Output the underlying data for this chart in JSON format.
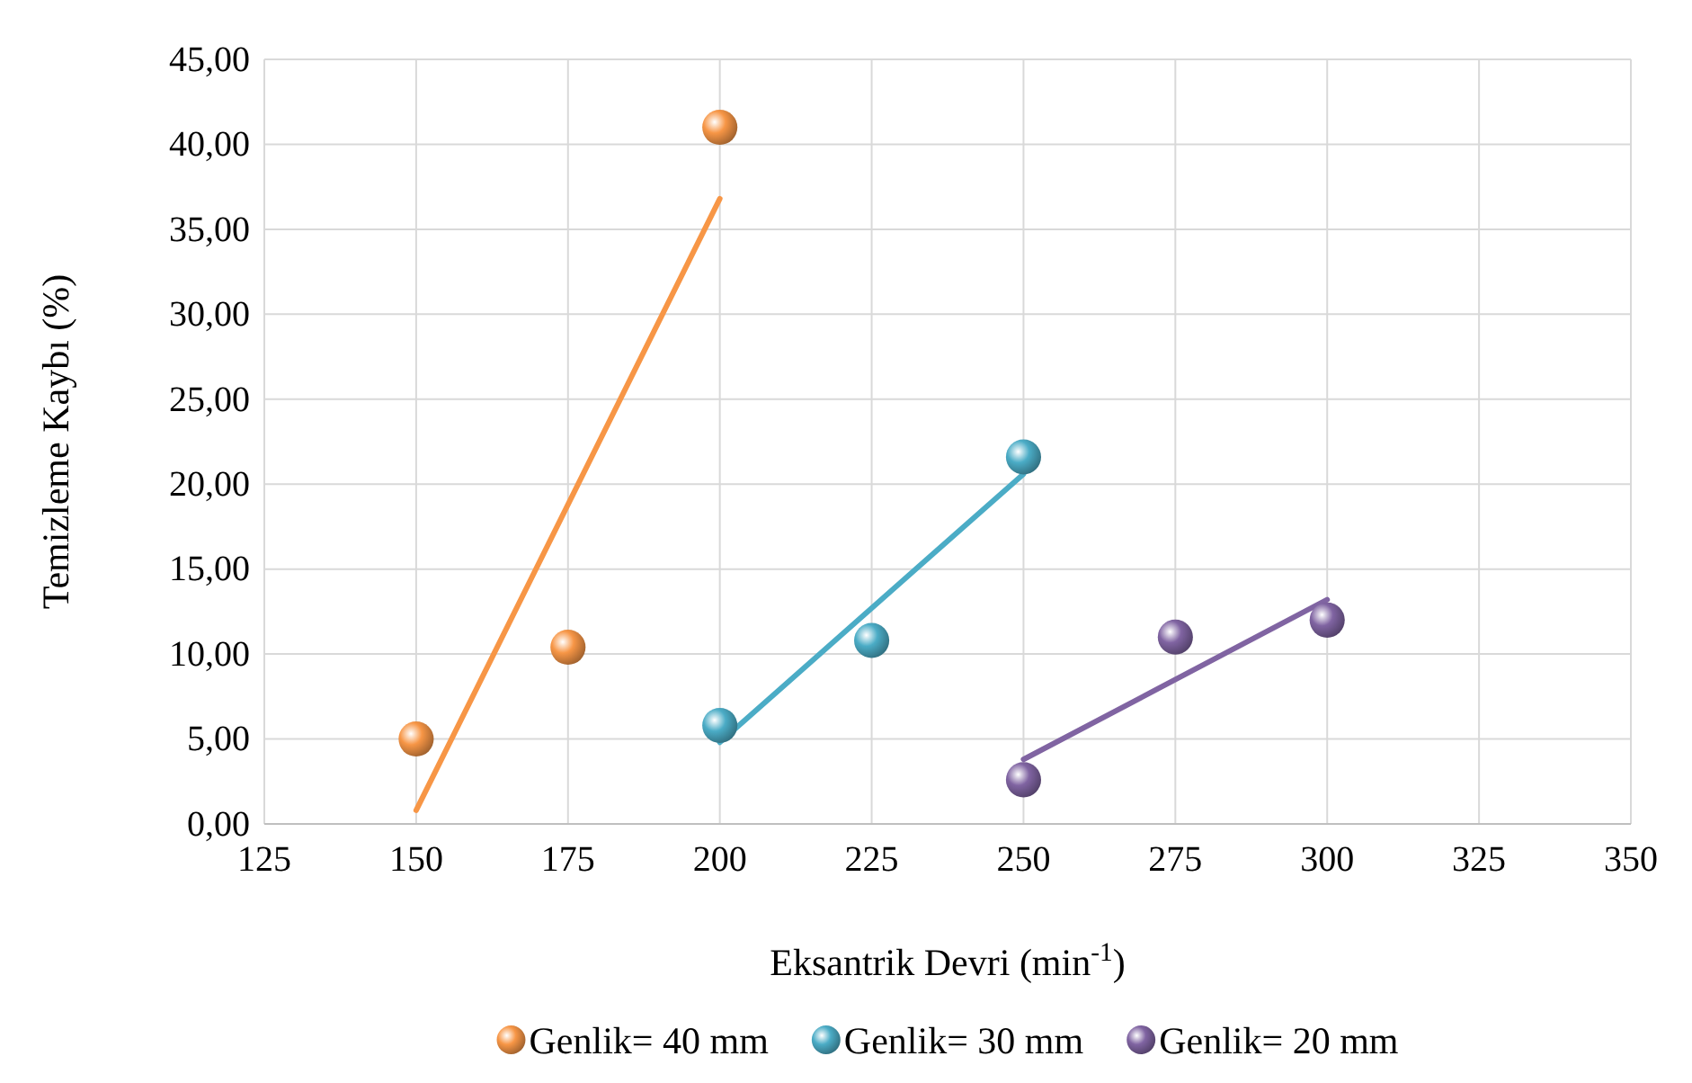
{
  "chart_data": {
    "type": "scatter",
    "xlabel": "Eksantrik Devri (min$^{-1}$)",
    "ylabel": "Temizleme Kaybı (%)",
    "xlim": [
      125,
      350
    ],
    "xticks": [
      125,
      150,
      175,
      200,
      225,
      250,
      275,
      300,
      325,
      350
    ],
    "ylim": [
      0,
      45
    ],
    "yticks": [
      {
        "value": 0,
        "label": "0,00"
      },
      {
        "value": 5,
        "label": "5,00"
      },
      {
        "value": 10,
        "label": "10,00"
      },
      {
        "value": 15,
        "label": "15,00"
      },
      {
        "value": 20,
        "label": "20,00"
      },
      {
        "value": 25,
        "label": "25,00"
      },
      {
        "value": 30,
        "label": "30,00"
      },
      {
        "value": 35,
        "label": "35,00"
      },
      {
        "value": 40,
        "label": "40,00"
      },
      {
        "value": 45,
        "label": "45,00"
      }
    ],
    "grid": true,
    "legend": "bottom",
    "marker": "circle",
    "series": [
      {
        "type": "line",
        "marker": "none",
        "color": "#f79646",
        "x": [
          150,
          200
        ],
        "values": [
          0.8,
          36.8
        ]
      },
      {
        "type": "line",
        "marker": "none",
        "color": "#4bacc6",
        "x": [
          200,
          250
        ],
        "values": [
          4.8,
          20.6
        ]
      },
      {
        "type": "line",
        "marker": "none",
        "color": "#8064a2",
        "x": [
          250,
          300
        ],
        "values": [
          3.8,
          13.2
        ]
      },
      {
        "name": "Genlik= 40 mm",
        "color": "#f79646",
        "x": [
          150,
          175,
          200
        ],
        "values": [
          5.0,
          10.4,
          41.0
        ]
      },
      {
        "name": "Genlik= 30 mm",
        "color": "#4bacc6",
        "x": [
          200,
          225,
          250
        ],
        "values": [
          5.8,
          10.8,
          21.6
        ]
      },
      {
        "name": "Genlik= 20 mm",
        "color": "#8064a2",
        "x": [
          250,
          275,
          300
        ],
        "values": [
          2.6,
          11.0,
          12.0
        ]
      }
    ]
  }
}
